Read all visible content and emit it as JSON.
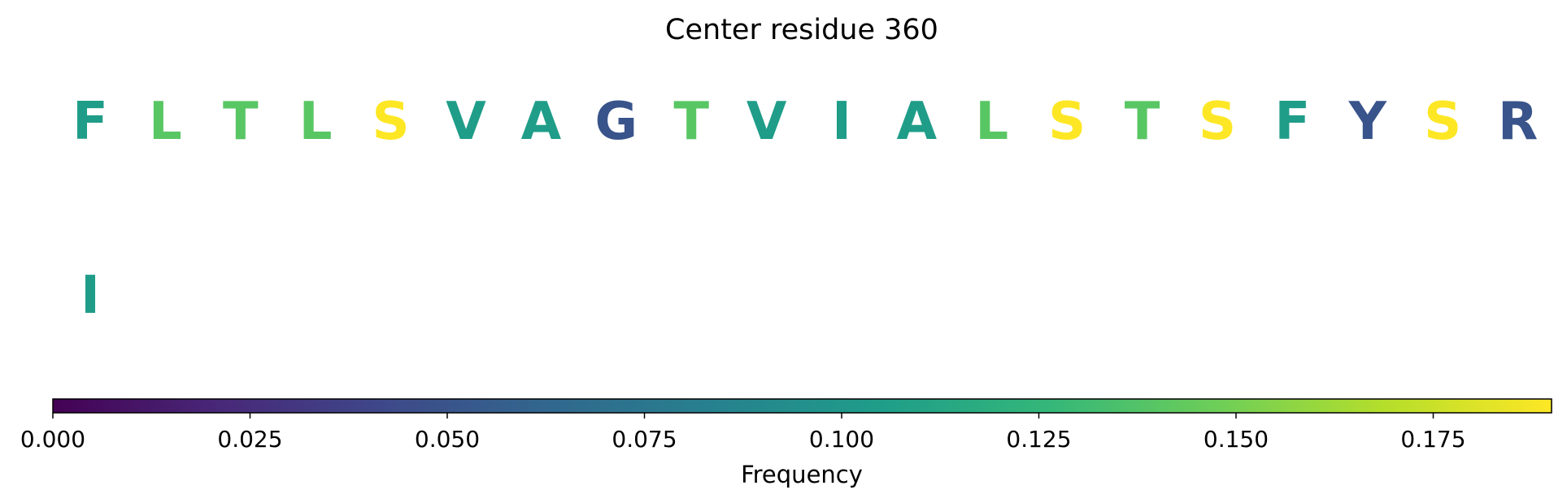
{
  "chart_data": {
    "type": "table",
    "title": "Center residue 360",
    "rows": [
      {
        "cells": [
          {
            "letter": "F",
            "frequency": 0.105
          },
          {
            "letter": "L",
            "frequency": 0.14
          },
          {
            "letter": "T",
            "frequency": 0.14
          },
          {
            "letter": "L",
            "frequency": 0.14
          },
          {
            "letter": "S",
            "frequency": 0.19
          },
          {
            "letter": "V",
            "frequency": 0.105
          },
          {
            "letter": "A",
            "frequency": 0.105
          },
          {
            "letter": "G",
            "frequency": 0.05
          },
          {
            "letter": "T",
            "frequency": 0.14
          },
          {
            "letter": "V",
            "frequency": 0.105
          },
          {
            "letter": "I",
            "frequency": 0.105
          },
          {
            "letter": "A",
            "frequency": 0.105
          },
          {
            "letter": "L",
            "frequency": 0.14
          },
          {
            "letter": "S",
            "frequency": 0.19
          },
          {
            "letter": "T",
            "frequency": 0.14
          },
          {
            "letter": "S",
            "frequency": 0.19
          },
          {
            "letter": "F",
            "frequency": 0.105
          },
          {
            "letter": "Y",
            "frequency": 0.05
          },
          {
            "letter": "S",
            "frequency": 0.19
          },
          {
            "letter": "R",
            "frequency": 0.05
          }
        ]
      },
      {
        "cells": [
          {
            "letter": "I",
            "frequency": 0.105
          }
        ]
      }
    ],
    "colorbar": {
      "label": "Frequency",
      "colormap": "viridis",
      "range": [
        0,
        0.19
      ],
      "ticks": [
        0.0,
        0.025,
        0.05,
        0.075,
        0.1,
        0.125,
        0.15,
        0.175
      ],
      "tick_labels": [
        "0.000",
        "0.025",
        "0.050",
        "0.075",
        "0.100",
        "0.125",
        "0.150",
        "0.175"
      ]
    }
  },
  "colors": {
    "viridis_stops": [
      "#440154",
      "#482878",
      "#3e4989",
      "#31688e",
      "#26828e",
      "#1f9e89",
      "#35b779",
      "#6ece58",
      "#b5de2b",
      "#fde725"
    ]
  }
}
